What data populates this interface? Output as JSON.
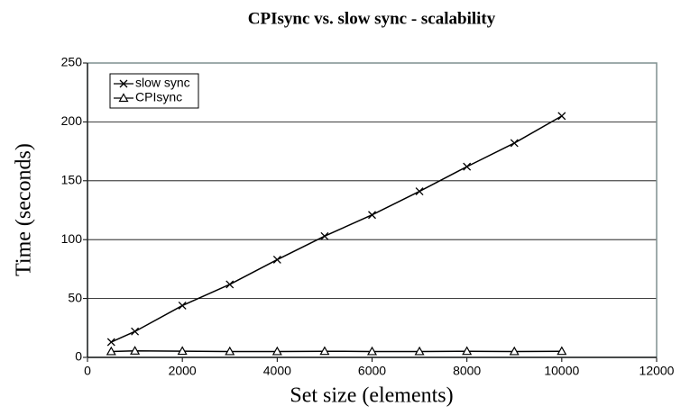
{
  "chart_data": {
    "type": "line",
    "title": "CPIsync vs. slow sync - scalability",
    "xlabel": "Set size (elements)",
    "ylabel": "Time  (seconds)",
    "xlim": [
      0,
      12000
    ],
    "xticks": [
      0,
      2000,
      4000,
      6000,
      8000,
      10000,
      12000
    ],
    "ylim": [
      0,
      250
    ],
    "yticks": [
      0,
      50,
      100,
      150,
      200,
      250
    ],
    "grid": true,
    "legend": "upper left",
    "series": [
      {
        "name": "slow sync",
        "color": "#000000",
        "marker": "x",
        "x": [
          500,
          1000,
          2000,
          3000,
          4000,
          5000,
          6000,
          7000,
          8000,
          9000,
          10000
        ],
        "values": [
          13,
          22,
          44,
          62,
          83,
          103,
          121,
          141,
          162,
          182,
          205
        ]
      },
      {
        "name": "CPIsync",
        "color": "#000000",
        "marker": "triangle",
        "x": [
          500,
          1000,
          2000,
          3000,
          4000,
          5000,
          6000,
          7000,
          8000,
          9000,
          10000
        ],
        "values": [
          5,
          5.5,
          5.3,
          5,
          5,
          5.2,
          5,
          5,
          5.2,
          5,
          5.2
        ]
      }
    ]
  }
}
